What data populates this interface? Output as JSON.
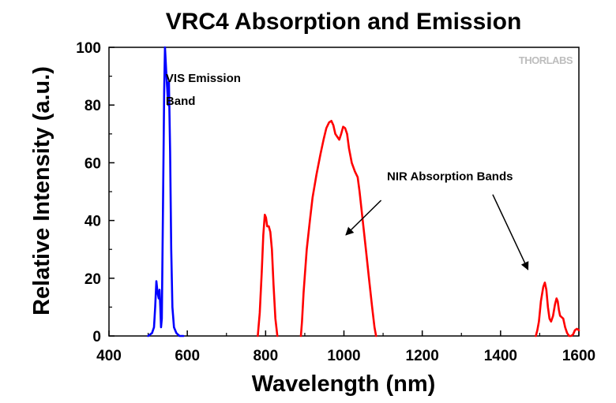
{
  "chart_data": {
    "type": "line",
    "title": "VRC4 Absorption and Emission",
    "xlabel": "Wavelength (nm)",
    "ylabel": "Relative Intensity (a.u.)",
    "xlim": [
      400,
      1600
    ],
    "ylim": [
      0,
      100
    ],
    "x_ticks": [
      400,
      600,
      800,
      1000,
      1200,
      1400,
      1600
    ],
    "y_ticks": [
      0,
      20,
      40,
      60,
      80,
      100
    ],
    "grid": false,
    "legend": "none",
    "series": [
      {
        "color": "#0000ff",
        "segments": [
          [
            [
              500,
              0
            ],
            [
              510,
              1
            ],
            [
              515,
              3
            ],
            [
              518,
              10
            ],
            [
              521,
              19
            ],
            [
              524,
              15
            ],
            [
              527,
              13
            ],
            [
              529,
              16
            ],
            [
              531,
              10
            ],
            [
              533,
              3
            ],
            [
              535,
              6
            ],
            [
              538,
              45
            ],
            [
              541,
              85
            ],
            [
              543,
              100
            ],
            [
              546,
              92
            ],
            [
              549,
              85
            ],
            [
              551,
              80
            ],
            [
              553,
              88
            ],
            [
              556,
              64
            ],
            [
              559,
              30
            ],
            [
              562,
              10
            ],
            [
              566,
              3
            ],
            [
              572,
              1
            ],
            [
              580,
              0
            ],
            [
              590,
              0
            ]
          ]
        ]
      },
      {
        "color": "#ff0000",
        "segments": [
          [
            [
              780,
              0
            ],
            [
              785,
              8
            ],
            [
              790,
              22
            ],
            [
              794,
              35
            ],
            [
              798,
              42
            ],
            [
              801,
              41
            ],
            [
              804,
              38
            ],
            [
              808,
              38
            ],
            [
              812,
              36
            ],
            [
              816,
              30
            ],
            [
              820,
              18
            ],
            [
              825,
              6
            ],
            [
              830,
              0
            ]
          ],
          [
            [
              890,
              0
            ],
            [
              893,
              5
            ],
            [
              897,
              15
            ],
            [
              905,
              30
            ],
            [
              913,
              40
            ],
            [
              920,
              48
            ],
            [
              930,
              56
            ],
            [
              940,
              63
            ],
            [
              948,
              68
            ],
            [
              955,
              72
            ],
            [
              962,
              74
            ],
            [
              968,
              74.5
            ],
            [
              973,
              73
            ],
            [
              978,
              70
            ],
            [
              983,
              69
            ],
            [
              988,
              68
            ],
            [
              993,
              70
            ],
            [
              998,
              72.5
            ],
            [
              1003,
              72
            ],
            [
              1008,
              70
            ],
            [
              1013,
              65
            ],
            [
              1020,
              60
            ],
            [
              1028,
              57
            ],
            [
              1035,
              55
            ],
            [
              1040,
              50
            ],
            [
              1048,
              40
            ],
            [
              1056,
              30
            ],
            [
              1064,
              20
            ],
            [
              1072,
              10
            ],
            [
              1078,
              3
            ],
            [
              1082,
              0
            ]
          ],
          [
            [
              1490,
              0
            ],
            [
              1494,
              2
            ],
            [
              1498,
              5
            ],
            [
              1503,
              12
            ],
            [
              1509,
              17
            ],
            [
              1513,
              18.5
            ],
            [
              1517,
              16
            ],
            [
              1521,
              10
            ],
            [
              1525,
              6
            ],
            [
              1529,
              5
            ],
            [
              1534,
              7
            ],
            [
              1539,
              11
            ],
            [
              1543,
              13
            ],
            [
              1546,
              12
            ],
            [
              1549,
              9
            ],
            [
              1552,
              7
            ],
            [
              1556,
              6.5
            ],
            [
              1560,
              6
            ],
            [
              1565,
              3
            ],
            [
              1570,
              1
            ],
            [
              1575,
              0
            ],
            [
              1580,
              0
            ],
            [
              1585,
              0.5
            ],
            [
              1590,
              2
            ],
            [
              1595,
              2.5
            ],
            [
              1600,
              2
            ]
          ]
        ]
      }
    ],
    "annotations": [
      {
        "text": "VIS Emission",
        "x": 545,
        "y": 88
      },
      {
        "text": "Band",
        "x": 545,
        "y": 80
      },
      {
        "text": "NIR Absorption Bands",
        "x": 1110,
        "y": 54
      }
    ],
    "arrows": [
      {
        "from": [
          1095,
          47
        ],
        "to": [
          1005,
          35
        ]
      },
      {
        "from": [
          1380,
          49
        ],
        "to": [
          1470,
          23
        ]
      }
    ]
  },
  "logo": "THORLABS"
}
